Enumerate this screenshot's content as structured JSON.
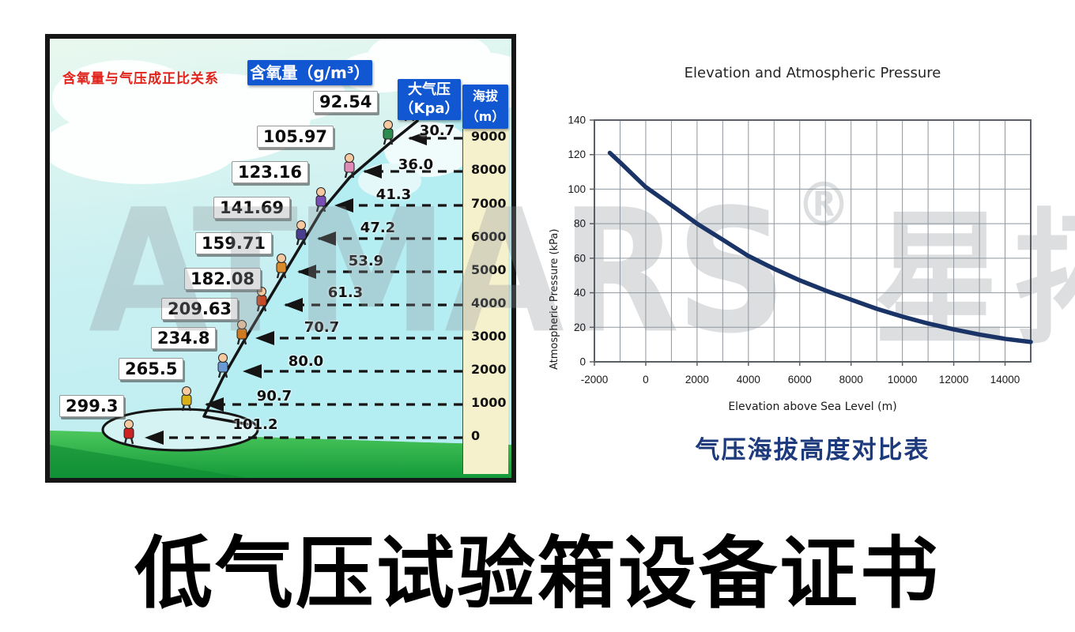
{
  "watermark": {
    "latin": "ATMARS",
    "reg": "®",
    "cjk": "星拓"
  },
  "infographic": {
    "title": "含氧量与气压成正比关系",
    "oxygen_header": "含氧量（g/m³）",
    "pressure_header_l1": "大气压",
    "pressure_header_l2": "（Kpa）",
    "elevation_header_l1": "海拔",
    "elevation_header_l2": "（m）",
    "rows": [
      {
        "oxygen": "92.54",
        "pressure": "30.7",
        "elevation": "9000"
      },
      {
        "oxygen": "105.97",
        "pressure": "36.0",
        "elevation": "8000"
      },
      {
        "oxygen": "123.16",
        "pressure": "41.3",
        "elevation": "7000"
      },
      {
        "oxygen": "141.69",
        "pressure": "47.2",
        "elevation": "6000"
      },
      {
        "oxygen": "159.71",
        "pressure": "53.9",
        "elevation": "5000"
      },
      {
        "oxygen": "182.08",
        "pressure": "61.3",
        "elevation": "4000"
      },
      {
        "oxygen": "209.63",
        "pressure": "70.7",
        "elevation": "3000"
      },
      {
        "oxygen": "234.8",
        "pressure": "80.0",
        "elevation": "2000"
      },
      {
        "oxygen": "265.5",
        "pressure": "90.7",
        "elevation": "1000"
      },
      {
        "oxygen": "299.3",
        "pressure": "101.2",
        "elevation": "0"
      }
    ]
  },
  "chart_caption": "气压海拔高度对比表",
  "page_title": "低气压试验箱设备证书",
  "chart_data": [
    {
      "type": "line",
      "title": "Elevation and Atmospheric Pressure",
      "xlabel": "Elevation above Sea Level (m)",
      "ylabel": "Atmospheric Pressure (kPa)",
      "xlim": [
        -2000,
        15000
      ],
      "ylim": [
        0,
        140
      ],
      "x_ticks": [
        -2000,
        0,
        2000,
        4000,
        6000,
        8000,
        10000,
        12000,
        14000
      ],
      "y_ticks": [
        0,
        20,
        40,
        60,
        80,
        100,
        120,
        140
      ],
      "x_grid_step": 1000,
      "y_grid_step": 20,
      "grid": true,
      "legend": false,
      "grid_color": "#8f979e",
      "border_color": "#5a5f66",
      "series": [
        {
          "name": "Atmospheric Pressure (kPa)",
          "color": "#1b3468",
          "x": [
            -1400,
            -1000,
            0,
            1000,
            2000,
            3000,
            4000,
            5000,
            6000,
            7000,
            8000,
            9000,
            10000,
            11000,
            12000,
            13000,
            14000,
            15000
          ],
          "y": [
            121,
            115.5,
            101.2,
            90.7,
            80.0,
            70.7,
            61.3,
            53.9,
            47.2,
            41.3,
            36.0,
            30.7,
            26.2,
            22.2,
            18.8,
            15.8,
            13.3,
            11.5
          ]
        }
      ]
    },
    {
      "type": "table",
      "title": "含氧量与气压成正比关系",
      "columns": [
        "含氧量 (g/m³)",
        "大气压 (Kpa)",
        "海拔 (m)"
      ],
      "rows": [
        [
          92.54,
          30.7,
          9000
        ],
        [
          105.97,
          36.0,
          8000
        ],
        [
          123.16,
          41.3,
          7000
        ],
        [
          141.69,
          47.2,
          6000
        ],
        [
          159.71,
          53.9,
          5000
        ],
        [
          182.08,
          61.3,
          4000
        ],
        [
          209.63,
          70.7,
          3000
        ],
        [
          234.8,
          80.0,
          2000
        ],
        [
          265.5,
          90.7,
          1000
        ],
        [
          299.3,
          101.2,
          0
        ]
      ]
    }
  ]
}
